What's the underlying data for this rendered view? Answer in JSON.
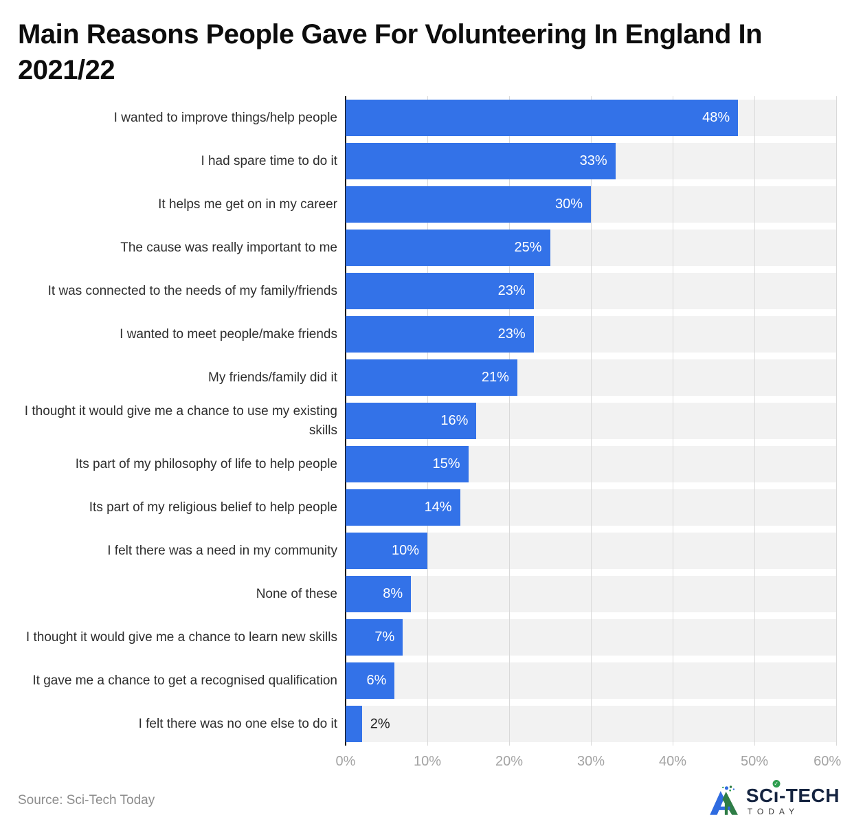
{
  "title": "Main Reasons People Gave For Volunteering In England In 2021/22",
  "chart_data": {
    "type": "bar",
    "orientation": "horizontal",
    "title": "Main Reasons People Gave For Volunteering In England In 2021/22",
    "categories": [
      "I wanted to improve things/help people",
      "I had spare time to do it",
      "It helps me get on in my career",
      "The cause was really important to me",
      "It was connected to the needs of my family/friends",
      "I wanted to meet people/make friends",
      "My friends/family did it",
      "I thought it would give me a chance to use my existing skills",
      "Its part of my philosophy of life to help people",
      "Its part of my religious belief to help people",
      "I felt there was a need in my community",
      "None of these",
      "I thought it would give me a chance to learn new skills",
      "It gave me a chance to get a recognised qualification",
      "I felt there was no one else to do it"
    ],
    "values": [
      48,
      33,
      30,
      25,
      23,
      23,
      21,
      16,
      15,
      14,
      10,
      8,
      7,
      6,
      2
    ],
    "value_labels": [
      "48%",
      "33%",
      "30%",
      "25%",
      "23%",
      "23%",
      "21%",
      "16%",
      "15%",
      "14%",
      "10%",
      "8%",
      "7%",
      "6%",
      "2%"
    ],
    "xlabel": "",
    "ylabel": "",
    "xlim": [
      0,
      60
    ],
    "x_ticks": [
      "0%",
      "10%",
      "20%",
      "30%",
      "40%",
      "50%",
      "60%"
    ],
    "grid": "vertical",
    "legend": "none",
    "bar_color": "#3372e8",
    "band_color": "#f2f2f2",
    "gridline_color": "#d9d9d9",
    "axis_line_color": "#111111",
    "tick_text_color": "#a3a3a3",
    "label_inside_color": "#ffffff",
    "label_outside_color": "#222222",
    "outside_label_values": [
      2
    ]
  },
  "footer": {
    "source": "Source: Sci-Tech Today",
    "logo": {
      "name": "SCI-TECH TODAY",
      "line1_prefix": "SC",
      "line1_i": "ı",
      "line1_suffix": "-TECH",
      "line2": "TODAY",
      "check": "✓",
      "navy": "#152440",
      "green": "#2e9e4f",
      "blue": "#2f6be0",
      "dark_green": "#2e7d46"
    }
  }
}
